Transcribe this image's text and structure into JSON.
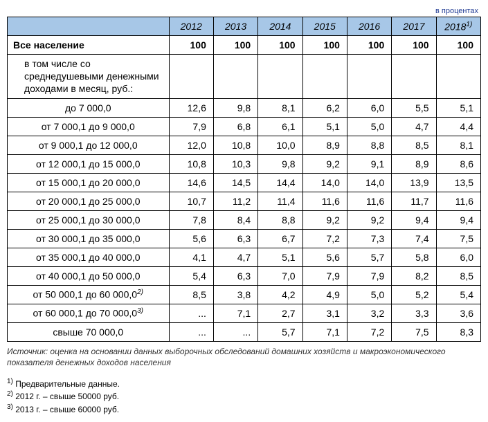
{
  "unit_label": "в процентах",
  "table": {
    "background_header": "#a7c7e7",
    "border_color": "#000000",
    "years": [
      "2012",
      "2013",
      "2014",
      "2015",
      "2016",
      "2017",
      "2018"
    ],
    "year_last_sup": "1)",
    "rows": [
      {
        "type": "bold",
        "label": "Все население",
        "values": [
          "100",
          "100",
          "100",
          "100",
          "100",
          "100",
          "100"
        ]
      },
      {
        "type": "sub",
        "label": "в том числе со среднедушевыми денежными доходами в месяц, руб.:",
        "values": [
          "",
          "",
          "",
          "",
          "",
          "",
          ""
        ]
      },
      {
        "type": "range",
        "label": "до 7 000,0",
        "values": [
          "12,6",
          "9,8",
          "8,1",
          "6,2",
          "6,0",
          "5,5",
          "5,1"
        ]
      },
      {
        "type": "range",
        "label": "от 7 000,1 до 9 000,0",
        "values": [
          "7,9",
          "6,8",
          "6,1",
          "5,1",
          "5,0",
          "4,7",
          "4,4"
        ]
      },
      {
        "type": "range",
        "label": "от 9 000,1 до 12 000,0",
        "values": [
          "12,0",
          "10,8",
          "10,0",
          "8,9",
          "8,8",
          "8,5",
          "8,1"
        ]
      },
      {
        "type": "range",
        "label": "от 12 000,1 до 15 000,0",
        "values": [
          "10,8",
          "10,3",
          "9,8",
          "9,2",
          "9,1",
          "8,9",
          "8,6"
        ]
      },
      {
        "type": "range",
        "label": "от 15 000,1 до 20 000,0",
        "values": [
          "14,6",
          "14,5",
          "14,4",
          "14,0",
          "14,0",
          "13,9",
          "13,5"
        ]
      },
      {
        "type": "range",
        "label": "от 20 000,1 до 25 000,0",
        "values": [
          "10,7",
          "11,2",
          "11,4",
          "11,6",
          "11,6",
          "11,7",
          "11,6"
        ]
      },
      {
        "type": "range",
        "label": "от 25 000,1 до 30 000,0",
        "values": [
          "7,8",
          "8,4",
          "8,8",
          "9,2",
          "9,2",
          "9,4",
          "9,4"
        ]
      },
      {
        "type": "range",
        "label": "от 30 000,1 до 35 000,0",
        "values": [
          "5,6",
          "6,3",
          "6,7",
          "7,2",
          "7,3",
          "7,4",
          "7,5"
        ]
      },
      {
        "type": "range",
        "label": "от 35 000,1 до 40 000,0",
        "values": [
          "4,1",
          "4,7",
          "5,1",
          "5,6",
          "5,7",
          "5,8",
          "6,0"
        ]
      },
      {
        "type": "range",
        "label": "от 40 000,1 до 50 000,0",
        "values": [
          "5,4",
          "6,3",
          "7,0",
          "7,9",
          "7,9",
          "8,2",
          "8,5"
        ]
      },
      {
        "type": "range",
        "label": "от 50 000,1 до 60 000,0",
        "sup": "2)",
        "values": [
          "8,5",
          "3,8",
          "4,2",
          "4,9",
          "5,0",
          "5,2",
          "5,4"
        ]
      },
      {
        "type": "range",
        "label": "от 60 000,1 до 70 000,0",
        "sup": "3)",
        "values": [
          "...",
          "7,1",
          "2,7",
          "3,1",
          "3,2",
          "3,3",
          "3,6"
        ]
      },
      {
        "type": "range",
        "label": "свыше 70 000,0",
        "values": [
          "...",
          "...",
          "5,7",
          "7,1",
          "7,2",
          "7,5",
          "8,3"
        ]
      }
    ]
  },
  "source": "Источник: оценка на основании данных  выборочных обследований домашних хозяйств  и макроэкономического показателя денежных доходов населения",
  "footnotes": [
    {
      "sup": "1)",
      "text": " Предварительные данные."
    },
    {
      "sup": "2)",
      "text": " 2012 г. – свыше 50000 руб."
    },
    {
      "sup": "3)",
      "text": " 2013 г. – свыше 60000 руб."
    }
  ]
}
